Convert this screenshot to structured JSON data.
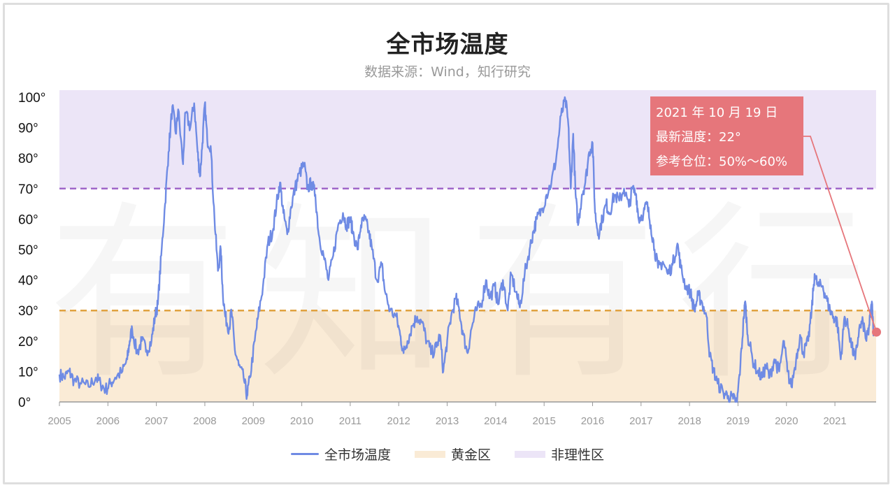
{
  "header": {
    "title": "全市场温度",
    "subtitle": "数据来源：Wind，知行研究"
  },
  "watermark": "有知有行",
  "annotation": {
    "line1": "2021 年 10 月 19 日",
    "line2": "最新温度：22°",
    "line3": "参考仓位：50%～60%"
  },
  "legend": {
    "series_label": "全市场温度",
    "gold_label": "黄金区",
    "irrational_label": "非理性区"
  },
  "colors": {
    "series": "#6f8be4",
    "gold_zone": "#faebd6",
    "irrational_zone": "#ece5f7",
    "gold_line": "#e0a240",
    "irrational_line": "#9f66c9",
    "annotation": "#e6767b"
  },
  "chart_data": {
    "type": "line",
    "title": "全市场温度",
    "subtitle": "数据来源：Wind，知行研究",
    "xlabel": "",
    "ylabel": "",
    "xlim": [
      2005,
      2021.85
    ],
    "ylim": [
      0,
      100
    ],
    "x_ticks": [
      "2005",
      "2006",
      "2007",
      "2008",
      "2009",
      "2010",
      "2011",
      "2012",
      "2013",
      "2014",
      "2015",
      "2016",
      "2017",
      "2018",
      "2019",
      "2020",
      "2021"
    ],
    "y_ticks": [
      "0°",
      "10°",
      "20°",
      "30°",
      "40°",
      "50°",
      "60°",
      "70°",
      "80°",
      "90°",
      "100°"
    ],
    "zones": [
      {
        "name": "黄金区",
        "from": 0,
        "to": 30
      },
      {
        "name": "非理性区",
        "from": 70,
        "to": 100
      }
    ],
    "threshold_lines": [
      30,
      70
    ],
    "latest_point": {
      "x": 2021.8,
      "y": 22
    },
    "series": [
      {
        "name": "全市场温度",
        "points": [
          [
            2005.0,
            9
          ],
          [
            2005.1,
            8
          ],
          [
            2005.2,
            10
          ],
          [
            2005.3,
            7
          ],
          [
            2005.45,
            6
          ],
          [
            2005.6,
            5
          ],
          [
            2005.75,
            8
          ],
          [
            2005.85,
            6
          ],
          [
            2005.95,
            4
          ],
          [
            2006.05,
            6
          ],
          [
            2006.15,
            8
          ],
          [
            2006.3,
            10
          ],
          [
            2006.4,
            14
          ],
          [
            2006.45,
            20
          ],
          [
            2006.5,
            24
          ],
          [
            2006.6,
            16
          ],
          [
            2006.7,
            20
          ],
          [
            2006.8,
            17
          ],
          [
            2006.9,
            20
          ],
          [
            2006.97,
            28
          ],
          [
            2007.03,
            32
          ],
          [
            2007.1,
            48
          ],
          [
            2007.18,
            65
          ],
          [
            2007.25,
            82
          ],
          [
            2007.33,
            97
          ],
          [
            2007.4,
            88
          ],
          [
            2007.45,
            96
          ],
          [
            2007.55,
            78
          ],
          [
            2007.6,
            95
          ],
          [
            2007.7,
            90
          ],
          [
            2007.78,
            98
          ],
          [
            2007.85,
            82
          ],
          [
            2007.9,
            74
          ],
          [
            2007.95,
            85
          ],
          [
            2008.0,
            98
          ],
          [
            2008.05,
            86
          ],
          [
            2008.12,
            84
          ],
          [
            2008.2,
            60
          ],
          [
            2008.27,
            43
          ],
          [
            2008.33,
            50
          ],
          [
            2008.37,
            36
          ],
          [
            2008.42,
            28
          ],
          [
            2008.5,
            24
          ],
          [
            2008.55,
            30
          ],
          [
            2008.62,
            17
          ],
          [
            2008.7,
            12
          ],
          [
            2008.8,
            8
          ],
          [
            2008.87,
            2
          ],
          [
            2008.93,
            8
          ],
          [
            2009.03,
            20
          ],
          [
            2009.1,
            28
          ],
          [
            2009.2,
            38
          ],
          [
            2009.3,
            52
          ],
          [
            2009.4,
            56
          ],
          [
            2009.48,
            65
          ],
          [
            2009.55,
            72
          ],
          [
            2009.62,
            62
          ],
          [
            2009.7,
            55
          ],
          [
            2009.78,
            64
          ],
          [
            2009.86,
            70
          ],
          [
            2009.95,
            75
          ],
          [
            2010.05,
            78
          ],
          [
            2010.12,
            70
          ],
          [
            2010.2,
            72
          ],
          [
            2010.28,
            68
          ],
          [
            2010.35,
            55
          ],
          [
            2010.45,
            48
          ],
          [
            2010.55,
            40
          ],
          [
            2010.65,
            48
          ],
          [
            2010.75,
            58
          ],
          [
            2010.85,
            62
          ],
          [
            2010.92,
            58
          ],
          [
            2011.0,
            60
          ],
          [
            2011.05,
            56
          ],
          [
            2011.15,
            50
          ],
          [
            2011.22,
            58
          ],
          [
            2011.3,
            60
          ],
          [
            2011.38,
            56
          ],
          [
            2011.45,
            50
          ],
          [
            2011.55,
            40
          ],
          [
            2011.65,
            45
          ],
          [
            2011.72,
            36
          ],
          [
            2011.82,
            30
          ],
          [
            2011.95,
            28
          ],
          [
            2012.03,
            22
          ],
          [
            2012.1,
            16
          ],
          [
            2012.18,
            20
          ],
          [
            2012.28,
            25
          ],
          [
            2012.38,
            28
          ],
          [
            2012.48,
            26
          ],
          [
            2012.58,
            20
          ],
          [
            2012.68,
            16
          ],
          [
            2012.78,
            18
          ],
          [
            2012.85,
            22
          ],
          [
            2012.92,
            10
          ],
          [
            2013.0,
            20
          ],
          [
            2013.08,
            28
          ],
          [
            2013.18,
            34
          ],
          [
            2013.25,
            30
          ],
          [
            2013.33,
            22
          ],
          [
            2013.42,
            16
          ],
          [
            2013.5,
            24
          ],
          [
            2013.6,
            30
          ],
          [
            2013.7,
            32
          ],
          [
            2013.8,
            40
          ],
          [
            2013.88,
            34
          ],
          [
            2013.98,
            38
          ],
          [
            2014.05,
            32
          ],
          [
            2014.15,
            40
          ],
          [
            2014.25,
            30
          ],
          [
            2014.32,
            42
          ],
          [
            2014.42,
            36
          ],
          [
            2014.5,
            31
          ],
          [
            2014.6,
            42
          ],
          [
            2014.7,
            50
          ],
          [
            2014.78,
            56
          ],
          [
            2014.85,
            60
          ],
          [
            2014.95,
            63
          ],
          [
            2015.05,
            68
          ],
          [
            2015.15,
            72
          ],
          [
            2015.25,
            80
          ],
          [
            2015.35,
            94
          ],
          [
            2015.44,
            99
          ],
          [
            2015.5,
            91
          ],
          [
            2015.55,
            70
          ],
          [
            2015.6,
            88
          ],
          [
            2015.65,
            68
          ],
          [
            2015.7,
            58
          ],
          [
            2015.78,
            68
          ],
          [
            2015.85,
            72
          ],
          [
            2015.93,
            82
          ],
          [
            2016.0,
            85
          ],
          [
            2016.05,
            62
          ],
          [
            2016.12,
            55
          ],
          [
            2016.2,
            60
          ],
          [
            2016.28,
            65
          ],
          [
            2016.35,
            62
          ],
          [
            2016.45,
            68
          ],
          [
            2016.55,
            66
          ],
          [
            2016.65,
            70
          ],
          [
            2016.75,
            64
          ],
          [
            2016.82,
            70
          ],
          [
            2016.9,
            68
          ],
          [
            2016.95,
            60
          ],
          [
            2017.05,
            62
          ],
          [
            2017.12,
            65
          ],
          [
            2017.2,
            58
          ],
          [
            2017.28,
            50
          ],
          [
            2017.35,
            44
          ],
          [
            2017.45,
            46
          ],
          [
            2017.55,
            42
          ],
          [
            2017.65,
            45
          ],
          [
            2017.75,
            52
          ],
          [
            2017.82,
            44
          ],
          [
            2017.92,
            38
          ],
          [
            2018.02,
            36
          ],
          [
            2018.1,
            30
          ],
          [
            2018.18,
            35
          ],
          [
            2018.25,
            33
          ],
          [
            2018.35,
            28
          ],
          [
            2018.42,
            15
          ],
          [
            2018.5,
            10
          ],
          [
            2018.58,
            6
          ],
          [
            2018.7,
            3
          ],
          [
            2018.8,
            2
          ],
          [
            2018.9,
            1
          ],
          [
            2018.98,
            0
          ],
          [
            2019.05,
            12
          ],
          [
            2019.12,
            28
          ],
          [
            2019.15,
            33
          ],
          [
            2019.2,
            22
          ],
          [
            2019.3,
            14
          ],
          [
            2019.4,
            10
          ],
          [
            2019.5,
            8
          ],
          [
            2019.58,
            12
          ],
          [
            2019.65,
            8
          ],
          [
            2019.75,
            14
          ],
          [
            2019.85,
            10
          ],
          [
            2019.95,
            20
          ],
          [
            2020.02,
            10
          ],
          [
            2020.1,
            5
          ],
          [
            2020.2,
            14
          ],
          [
            2020.28,
            22
          ],
          [
            2020.35,
            16
          ],
          [
            2020.45,
            20
          ],
          [
            2020.52,
            30
          ],
          [
            2020.58,
            42
          ],
          [
            2020.65,
            38
          ],
          [
            2020.75,
            38
          ],
          [
            2020.82,
            34
          ],
          [
            2020.9,
            30
          ],
          [
            2020.97,
            28
          ],
          [
            2021.05,
            26
          ],
          [
            2021.12,
            14
          ],
          [
            2021.2,
            28
          ],
          [
            2021.28,
            24
          ],
          [
            2021.35,
            18
          ],
          [
            2021.42,
            14
          ],
          [
            2021.5,
            24
          ],
          [
            2021.58,
            26
          ],
          [
            2021.65,
            20
          ],
          [
            2021.7,
            24
          ],
          [
            2021.74,
            30
          ],
          [
            2021.77,
            32
          ],
          [
            2021.8,
            22
          ]
        ]
      }
    ]
  }
}
